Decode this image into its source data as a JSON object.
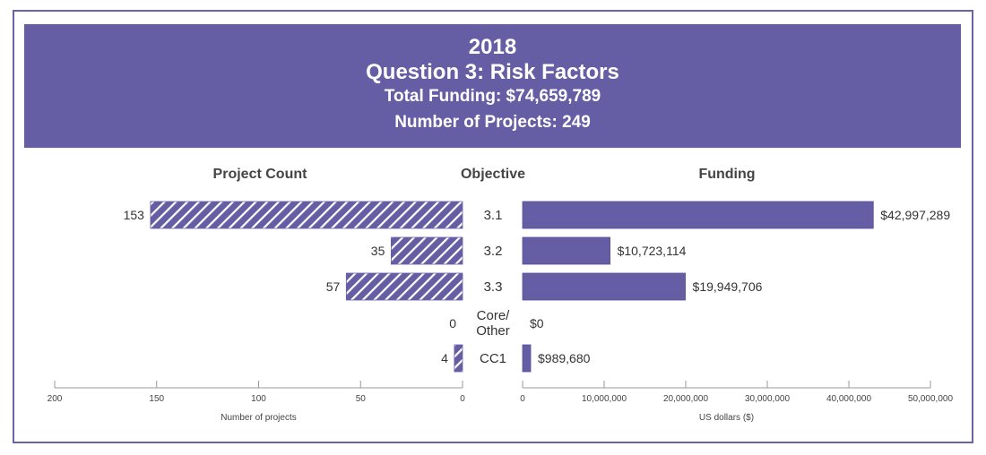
{
  "header": {
    "year": "2018",
    "question": "Question 3: Risk Factors",
    "total_funding": "Total Funding: $74,659,789",
    "num_projects": "Number of Projects: 249"
  },
  "colors": {
    "primary": "#655ea4",
    "border": "#6a63a8",
    "axis": "#999999"
  },
  "chart_data": {
    "type": "bar",
    "title": "2018 Question 3: Risk Factors",
    "subtitle": [
      "Total Funding: $74,659,789",
      "Number of Projects: 249"
    ],
    "column_headers": {
      "left": "Project Count",
      "center": "Objective",
      "right": "Funding"
    },
    "categories": [
      "3.1",
      "3.2",
      "3.3",
      "Core/ Other",
      "CC1"
    ],
    "category_lines": [
      [
        "3.1"
      ],
      [
        "3.2"
      ],
      [
        "3.3"
      ],
      [
        "Core/",
        "Other"
      ],
      [
        "CC1"
      ]
    ],
    "series": [
      {
        "name": "Project Count",
        "orientation": "left",
        "pattern": "hatched",
        "values": [
          153,
          35,
          57,
          0,
          4
        ],
        "labels": [
          "153",
          "35",
          "57",
          "0",
          "4"
        ],
        "xlabel": "Number of projects",
        "xlim": [
          0,
          200
        ],
        "ticks": [
          200,
          150,
          100,
          50,
          0
        ],
        "tick_labels": [
          "200",
          "150",
          "100",
          "50",
          "0"
        ]
      },
      {
        "name": "Funding",
        "orientation": "right",
        "pattern": "solid",
        "values": [
          42997289,
          10723114,
          19949706,
          0,
          989680
        ],
        "labels": [
          "$42,997,289",
          "$10,723,114",
          "$19,949,706",
          "$0",
          "$989,680"
        ],
        "xlabel": "US dollars ($)",
        "xlim": [
          0,
          50000000
        ],
        "ticks": [
          0,
          10000000,
          20000000,
          30000000,
          40000000,
          50000000
        ],
        "tick_labels": [
          "0",
          "10,000,000",
          "20,000,000",
          "30,000,000",
          "40,000,000",
          "50,000,000"
        ]
      }
    ],
    "grid": false,
    "legend": "none"
  }
}
